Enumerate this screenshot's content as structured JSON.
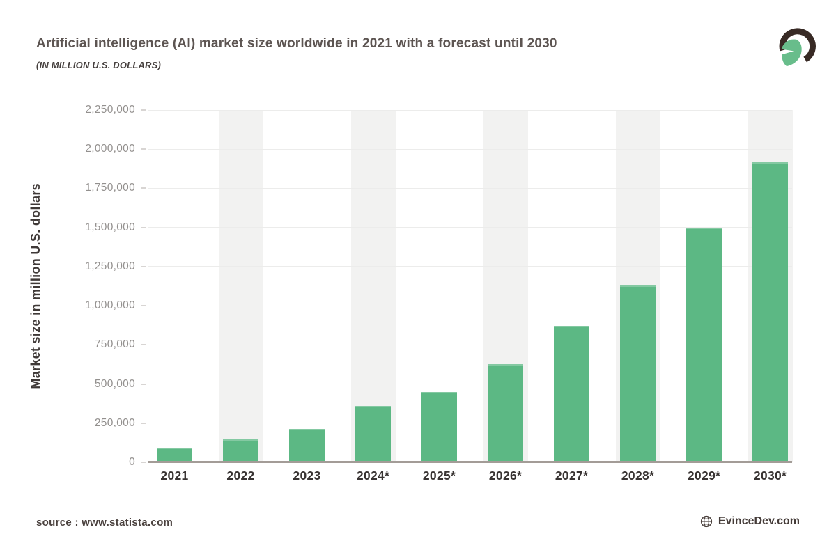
{
  "header": {
    "title": "Artificial intelligence (AI) market size worldwide in 2021 with a forecast until 2030",
    "subtitle": "(IN MILLION U.S. DOLLARS)"
  },
  "logo": {
    "icon": "spartan-helmet-logo",
    "arc_color": "#382a25",
    "helmet_color": "#68bd8b"
  },
  "chart_data": {
    "type": "bar",
    "title": "Artificial intelligence (AI) market size worldwide in 2021 with a forecast until 2030",
    "subtitle": "(IN MILLION U.S. DOLLARS)",
    "categories": [
      "2021",
      "2022",
      "2023",
      "2024*",
      "2025*",
      "2026*",
      "2027*",
      "2028*",
      "2029*",
      "2030*"
    ],
    "values": [
      95000,
      145000,
      215000,
      360000,
      450000,
      625000,
      870000,
      1130000,
      1500000,
      1915000
    ],
    "xlabel": "",
    "ylabel": "Market size in million U.S. dollars",
    "ylim": [
      0,
      2250000
    ],
    "yticks": [
      "0",
      "250,000",
      "500,000",
      "750,000",
      "1,000,000",
      "1,250,000",
      "1,500,000",
      "1,750,000",
      "2,000,000",
      "2,250,000"
    ],
    "grid": true,
    "legend": "none",
    "bar_color": "#5cb884",
    "bar_top_highlight": "#84c9a2",
    "band_color": "#f2f2f1",
    "gridline_color": "#ececeb",
    "baseline_color": "#a39c97",
    "banded_categories": [
      "2022",
      "2024*",
      "2026*",
      "2028*",
      "2030*"
    ]
  },
  "footer": {
    "source": "source : www.statista.com",
    "brand": "EvinceDev.com",
    "brand_icon": "globe-icon"
  }
}
